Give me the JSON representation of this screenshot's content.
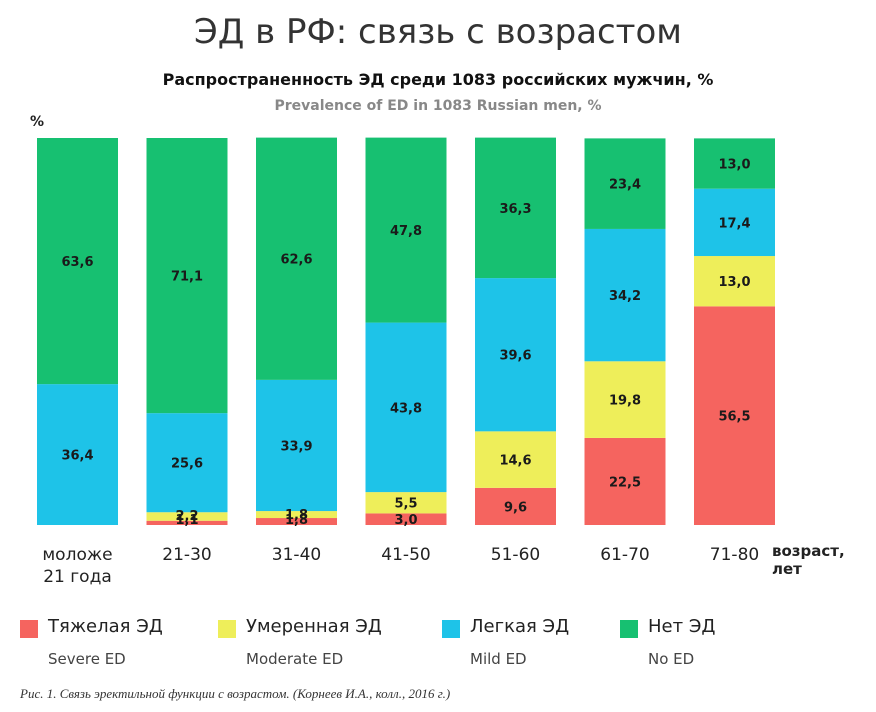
{
  "header": {
    "title": "ЭД в РФ: связь с возрастом"
  },
  "caption": "Рис. 1. Связь эректильной функции с возрастом. (Корнеев И.А., колл., 2016 г.)",
  "legend": [
    {
      "ru": "Тяжелая ЭД",
      "en": "Severe ED",
      "color": "#F5645F"
    },
    {
      "ru": "Умеренная ЭД",
      "en": "Moderate ED",
      "color": "#EEEE5A"
    },
    {
      "ru": "Легкая ЭД",
      "en": "Mild ED",
      "color": "#1EC3E8"
    },
    {
      "ru": "Нет ЭД",
      "en": "No ED",
      "color": "#17C071"
    }
  ],
  "chart_data": {
    "type": "bar",
    "stacked": true,
    "title": "Распространенность ЭД среди 1083 российских мужчин, %",
    "subtitle": "Prevalence of ED in 1083 Russian men, %",
    "ylabel": "%",
    "xlabel": "возраст, лет",
    "ylim": [
      0,
      100
    ],
    "categories": [
      "моложе 21 года",
      "21-30",
      "31-40",
      "41-50",
      "51-60",
      "61-70",
      "71-80"
    ],
    "series": [
      {
        "name": "Тяжелая ЭД",
        "color": "#F5645F",
        "values": [
          0,
          1.1,
          1.8,
          3.0,
          9.6,
          22.5,
          56.5
        ],
        "labels": [
          "",
          "1,1",
          "1,8",
          "3,0",
          "9,6",
          "22,5",
          "56,5"
        ]
      },
      {
        "name": "Умеренная ЭД",
        "color": "#EEEE5A",
        "values": [
          0,
          2.2,
          1.8,
          5.5,
          14.6,
          19.8,
          13.0
        ],
        "labels": [
          "",
          "2,2",
          "1,8",
          "5,5",
          "14,6",
          "19,8",
          "13,0"
        ]
      },
      {
        "name": "Легкая ЭД",
        "color": "#1EC3E8",
        "values": [
          36.4,
          25.6,
          33.9,
          43.8,
          39.6,
          34.2,
          17.4
        ],
        "labels": [
          "36,4",
          "25,6",
          "33,9",
          "43,8",
          "39,6",
          "34,2",
          "17,4"
        ]
      },
      {
        "name": "Нет ЭД",
        "color": "#17C071",
        "values": [
          63.6,
          71.1,
          62.6,
          47.8,
          36.3,
          23.4,
          13.0
        ],
        "labels": [
          "63,6",
          "71,1",
          "62,6",
          "47,8",
          "36,3",
          "23,4",
          "13,0"
        ]
      }
    ],
    "grid": false,
    "legend_position": "bottom"
  }
}
